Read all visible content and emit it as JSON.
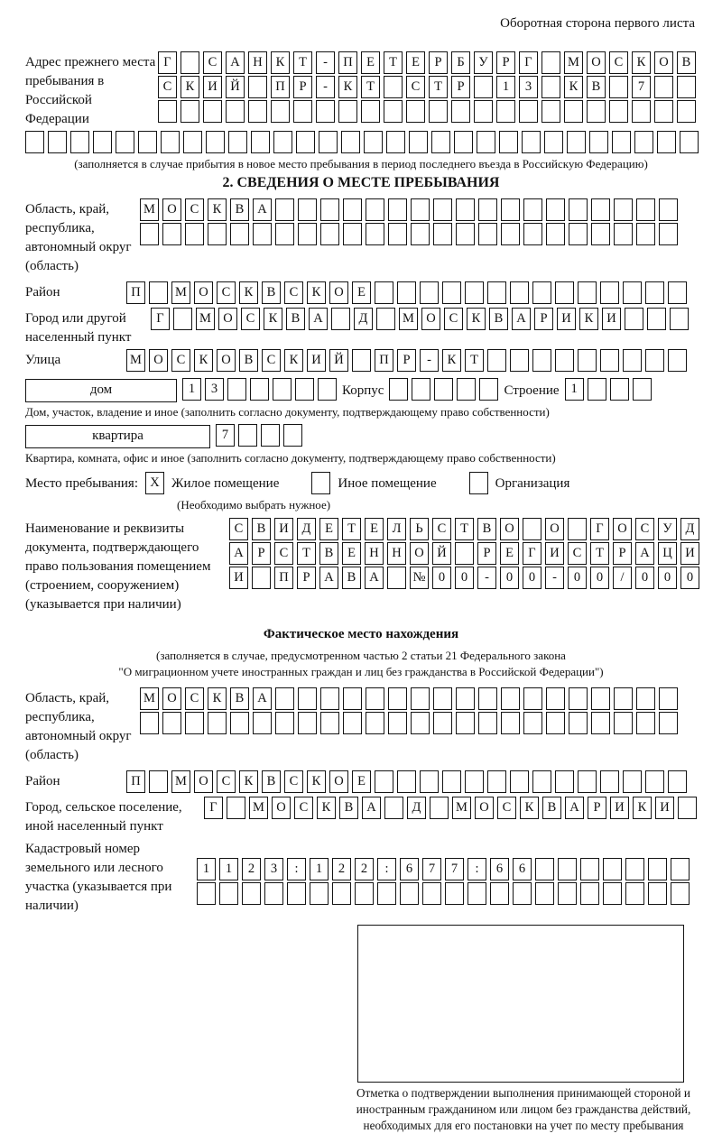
{
  "header": {
    "note": "Оборотная сторона первого листа"
  },
  "prev_address": {
    "label": "Адрес прежнего места пребывания в Российской Федерации",
    "rows": [
      {
        "text": "Г САНКТ-ПЕТЕРБУРГ МОСКОВ",
        "cells": 24
      },
      {
        "text": "СКИЙ ПР-КТ СТР 13 КВ 7",
        "cells": 24
      },
      {
        "text": "",
        "cells": 24
      },
      {
        "text": "",
        "cells": 30
      }
    ],
    "caption": "(заполняется в случае прибытия в новое место пребывания в период последнего въезда в Российскую Федерацию)"
  },
  "section2": {
    "title": "2. СВЕДЕНИЯ О МЕСТЕ ПРЕБЫВАНИЯ",
    "region": {
      "label": "Область, край, республика, автономный округ (область)",
      "rows": [
        {
          "text": "МОСКВА",
          "cells": 24
        },
        {
          "text": "",
          "cells": 24
        }
      ]
    },
    "district": {
      "label": "Район",
      "row": {
        "text": "П МОСКВСКОЕ",
        "cells": 25
      }
    },
    "city": {
      "label": "Город или другой населенный пункт",
      "row": {
        "text": "Г МОСКВА Д МОСКВАРИКИ",
        "cells": 24
      }
    },
    "street": {
      "label": "Улица",
      "row": {
        "text": "МОСКОВСКИЙ ПР-КТ",
        "cells": 25
      }
    },
    "house": {
      "box_label": "дом",
      "house_row": {
        "text": "13",
        "cells": 7
      },
      "korpus_label": "Корпус",
      "korpus_row": {
        "text": "",
        "cells": 5
      },
      "stroenie_label": "Строение",
      "stroenie_row": {
        "text": "1",
        "cells": 4
      },
      "caption": "Дом, участок, владение и иное (заполнить согласно документу, подтверждающему право собственности)"
    },
    "apartment": {
      "box_label": "квартира",
      "row": {
        "text": "7",
        "cells": 4
      },
      "caption": "Квартира, комната, офис и иное (заполнить согласно документу, подтверждающему право собственности)"
    },
    "stay_type": {
      "label": "Место пребывания:",
      "options": [
        {
          "label": "Жилое помещение",
          "mark": {
            "text": "X",
            "cells": 1
          }
        },
        {
          "label": "Иное помещение",
          "mark": {
            "text": "",
            "cells": 1
          }
        },
        {
          "label": "Организация",
          "mark": {
            "text": "",
            "cells": 1
          }
        }
      ],
      "note": "(Необходимо выбрать нужное)"
    },
    "document": {
      "label": "Наименование и реквизиты документа, подтверждающего право пользования помещением (строением, сооружением) (указывается при наличии)",
      "rows": [
        {
          "text": "СВИДЕТЕЛЬСТВО О ГОСУД",
          "cells": 21
        },
        {
          "text": "АРСТВЕННОЙ РЕГИСТРАЦИ",
          "cells": 21
        },
        {
          "text": "И ПРАВА №00-00-00/000",
          "cells": 21
        }
      ]
    }
  },
  "actual_location": {
    "title": "Фактическое место нахождения",
    "caption_line1": "(заполняется в случае, предусмотренном частью 2 статьи 21 Федерального закона",
    "caption_line2": "\"О миграционном учете иностранных граждан и лиц без гражданства в Российской Федерации\")",
    "region": {
      "label": "Область, край, республика, автономный округ (область)",
      "rows": [
        {
          "text": "МОСКВА",
          "cells": 24
        },
        {
          "text": "",
          "cells": 24
        }
      ]
    },
    "district": {
      "label": "Район",
      "row": {
        "text": "П МОСКВСКОЕ",
        "cells": 25
      }
    },
    "city": {
      "label": "Город, сельское поселение, иной населенный пункт",
      "row": {
        "text": "Г МОСКВА Д МОСКВАРИКИ",
        "cells": 22
      }
    },
    "cadastre": {
      "label": "Кадастровый номер земельного или лесного участка (указывается при наличии)",
      "rows": [
        {
          "text": "1123:122:677:66",
          "cells": 22
        },
        {
          "text": "",
          "cells": 22
        }
      ]
    }
  },
  "stamp": {
    "caption": "Отметка о подтверждении выполнения принимающей стороной и иностранным гражданином или лицом без гражданства действий, необходимых для его постановки на учет по месту пребывания"
  }
}
